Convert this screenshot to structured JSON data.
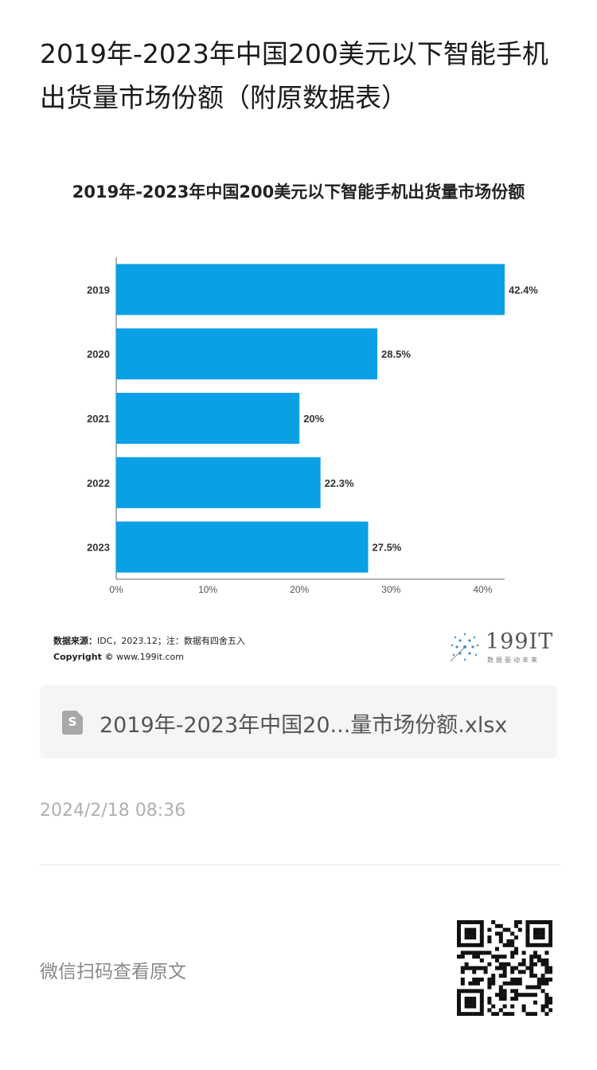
{
  "article": {
    "title": "2019年-2023年中国200美元以下智能手机出货量市场份额（附原数据表）"
  },
  "chart_data": {
    "type": "bar",
    "orientation": "horizontal",
    "title": "2019年-2023年中国200美元以下智能手机出货量市场份额",
    "categories": [
      "2019",
      "2020",
      "2021",
      "2022",
      "2023"
    ],
    "values": [
      42.4,
      28.5,
      20,
      22.3,
      27.5
    ],
    "value_labels": [
      "42.4%",
      "28.5%",
      "20%",
      "22.3%",
      "27.5%"
    ],
    "xlim": [
      0,
      42.4
    ],
    "x_ticks": [
      "0%",
      "10%",
      "20%",
      "30%",
      "40%"
    ],
    "x_tick_values": [
      0,
      10,
      20,
      30,
      40
    ],
    "bar_color": "#0aa0e6",
    "grid": false,
    "legend": "none"
  },
  "footer": {
    "source_label": "数据来源：",
    "source_text": "IDC，2023.12；注：数据有四舍五入",
    "copyright_label": "Copyright ©",
    "copyright_url": "www.199it.com"
  },
  "brand": {
    "name": "199IT",
    "slogan": "数据驱动未来"
  },
  "attachment": {
    "icon": "spreadsheet-icon",
    "icon_letter": "S",
    "filename": "2019年-2023年中国20...量市场份额.xlsx"
  },
  "meta": {
    "timestamp": "2024/2/18 08:36"
  },
  "footer_action": {
    "label": "微信扫码查看原文"
  }
}
